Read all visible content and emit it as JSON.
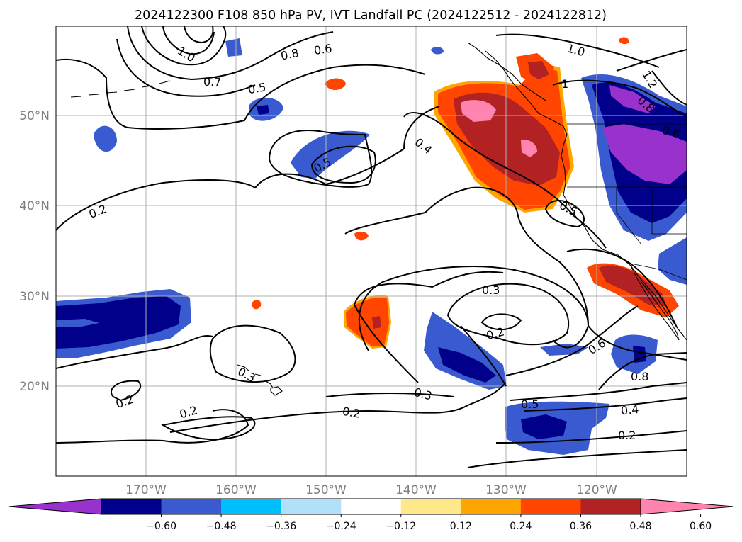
{
  "title": "2024122300 F108 850 hPa PV, IVT Landfall PC (2024122512 - 2024122812)",
  "map": {
    "lat_labels": [
      "50°N",
      "40°N",
      "30°N",
      "20°N"
    ],
    "lon_labels": [
      "170°W",
      "160°W",
      "150°W",
      "140°W",
      "130°W",
      "120°W"
    ],
    "contour_labels": [
      "1.0",
      "0.8",
      "0.6",
      "0.7",
      "0.5",
      "1.0",
      "1",
      "1.2",
      "0.8",
      "0.6",
      "0.5",
      "0.4",
      "0.2",
      "0.5",
      "0.3",
      "0.2",
      "0.6",
      "0.8",
      "0.3",
      "0.2",
      "0.2",
      "0.2",
      "0.3",
      "0.5",
      "0.4",
      "0.2"
    ]
  },
  "colorbar": {
    "ticks": [
      "−0.60",
      "−0.48",
      "−0.36",
      "−0.24",
      "−0.12",
      "0.12",
      "0.24",
      "0.36",
      "0.48",
      "0.60"
    ],
    "colors": [
      "#9932cc",
      "#00008b",
      "#3a5bd0",
      "#00bfff",
      "#b0e0fa",
      "#ffffff",
      "#ffe88a",
      "#ffa500",
      "#ff4500",
      "#b22222",
      "#ff85b0"
    ]
  }
}
